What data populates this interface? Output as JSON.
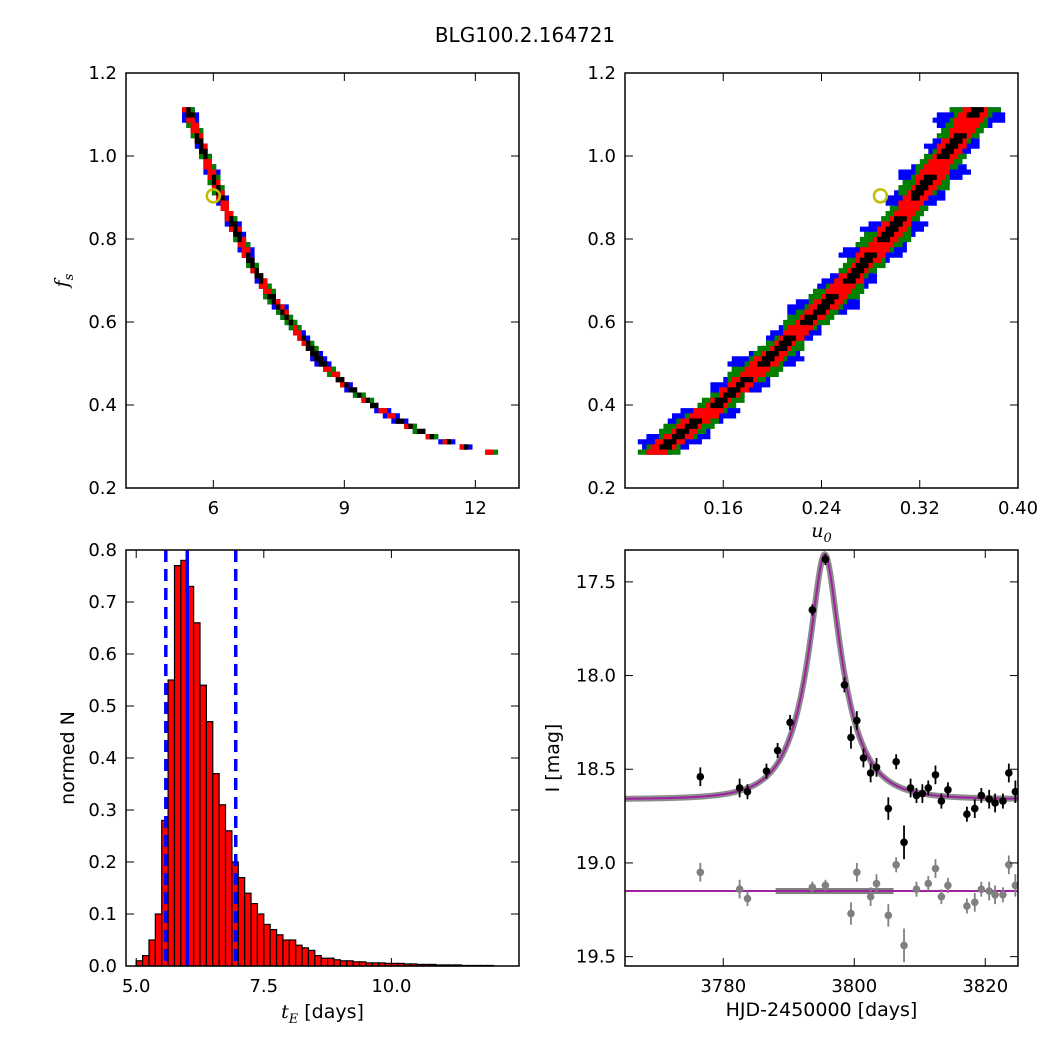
{
  "figure": {
    "title": "BLG100.2.164721"
  },
  "colors": {
    "blue": "#0000ff",
    "green": "#007f00",
    "red": "#ff0000",
    "black": "#000000",
    "marker": "#bfbf00",
    "model": "#a020a0",
    "residual": "#808080"
  },
  "chart_data": [
    {
      "id": "tE_fs",
      "type": "heatmap",
      "xlabel": "",
      "ylabel": "f_s",
      "ylabel_display": {
        "main": "f",
        "sub": "s"
      },
      "xlim": [
        4.0,
        13.0
      ],
      "ylim": [
        0.2,
        1.2
      ],
      "xticks": [
        6,
        9,
        12
      ],
      "xtick_labels": [
        "6",
        "9",
        "12"
      ],
      "yticks": [
        0.2,
        0.4,
        0.6,
        0.8,
        1.0,
        1.2
      ],
      "ytick_labels": [
        "0.2",
        "0.4",
        "0.6",
        "0.8",
        "1.0",
        "1.2"
      ],
      "levels": [
        "black",
        "red",
        "green",
        "blue"
      ],
      "best_fit": {
        "x": 6.0,
        "y": 0.904
      },
      "band_center": [
        [
          5.35,
          1.11
        ],
        [
          5.6,
          1.04
        ],
        [
          5.85,
          0.97
        ],
        [
          6.1,
          0.9
        ],
        [
          6.4,
          0.83
        ],
        [
          6.8,
          0.74
        ],
        [
          7.3,
          0.65
        ],
        [
          7.9,
          0.57
        ],
        [
          8.4,
          0.5
        ],
        [
          9.0,
          0.44
        ],
        [
          9.6,
          0.395
        ],
        [
          10.3,
          0.35
        ],
        [
          11.0,
          0.315
        ],
        [
          11.8,
          0.29
        ],
        [
          12.3,
          0.28
        ]
      ],
      "contour_half_widths": [
        0.018,
        0.045,
        0.07,
        0.09
      ]
    },
    {
      "id": "u0_fs",
      "type": "heatmap",
      "xlabel": "u_0",
      "xlabel_display": {
        "main": "u",
        "sub": "0"
      },
      "ylabel": "",
      "xlim": [
        0.08,
        0.4
      ],
      "ylim": [
        0.2,
        1.2
      ],
      "xticks": [
        0.16,
        0.24,
        0.32,
        0.4
      ],
      "xtick_labels": [
        "0.16",
        "0.24",
        "0.32",
        "0.40"
      ],
      "yticks": [
        0.2,
        0.4,
        0.6,
        0.8,
        1.0,
        1.2
      ],
      "ytick_labels": [
        "0.2",
        "0.4",
        "0.6",
        "0.8",
        "1.0",
        "1.2"
      ],
      "levels": [
        "black",
        "red",
        "green",
        "blue"
      ],
      "best_fit": {
        "x": 0.288,
        "y": 0.904
      },
      "band_center": [
        [
          0.105,
          0.28
        ],
        [
          0.13,
          0.34
        ],
        [
          0.16,
          0.41
        ],
        [
          0.19,
          0.49
        ],
        [
          0.22,
          0.575
        ],
        [
          0.25,
          0.66
        ],
        [
          0.275,
          0.74
        ],
        [
          0.3,
          0.83
        ],
        [
          0.325,
          0.935
        ],
        [
          0.35,
          1.04
        ],
        [
          0.365,
          1.11
        ]
      ],
      "contour_half_widths": [
        0.0035,
        0.009,
        0.014,
        0.018
      ]
    },
    {
      "id": "tE_hist",
      "type": "bar",
      "xlabel": "t_E [days]",
      "xlabel_display": {
        "main": "t",
        "sub": "E",
        "rest": " [days]"
      },
      "ylabel": "normed N",
      "xlim": [
        4.8,
        12.5
      ],
      "ylim": [
        0.0,
        0.8
      ],
      "xticks": [
        5.0,
        7.5,
        10.0
      ],
      "xtick_labels": [
        "5.0",
        "7.5",
        "10.0"
      ],
      "yticks": [
        0.0,
        0.1,
        0.2,
        0.3,
        0.4,
        0.5,
        0.6,
        0.7,
        0.8
      ],
      "ytick_labels": [
        "0.0",
        "0.1",
        "0.2",
        "0.3",
        "0.4",
        "0.5",
        "0.6",
        "0.7",
        "0.8"
      ],
      "bin_start": 5.0,
      "bin_width": 0.125,
      "values": [
        0.01,
        0.02,
        0.05,
        0.1,
        0.28,
        0.55,
        0.77,
        0.78,
        0.73,
        0.66,
        0.54,
        0.47,
        0.37,
        0.31,
        0.26,
        0.2,
        0.17,
        0.14,
        0.12,
        0.1,
        0.08,
        0.07,
        0.06,
        0.05,
        0.05,
        0.04,
        0.035,
        0.03,
        0.02,
        0.015,
        0.015,
        0.012,
        0.01,
        0.01,
        0.008,
        0.008,
        0.006,
        0.006,
        0.006,
        0.005,
        0.005,
        0.005,
        0.004,
        0.004,
        0.003,
        0.003,
        0.003,
        0.002,
        0.002,
        0.002,
        0.002,
        0.001,
        0.001,
        0.001,
        0.001,
        0.001
      ],
      "median": 6.0,
      "interval": [
        5.58,
        6.95
      ]
    },
    {
      "id": "lightcurve",
      "type": "scatter",
      "xlabel": "HJD-2450000 [days]",
      "ylabel": "I [mag]",
      "xlim": [
        3765.0,
        3825.0
      ],
      "ylim": [
        19.55,
        17.33
      ],
      "xticks": [
        3780,
        3800,
        3820
      ],
      "xtick_labels": [
        "3780",
        "3800",
        "3820"
      ],
      "yticks": [
        17.5,
        18.0,
        18.5,
        19.0,
        19.5
      ],
      "ytick_labels": [
        "17.5",
        "18.0",
        "18.5",
        "19.0",
        "19.5"
      ],
      "model": {
        "t0": 3795.5,
        "tE": 6.0,
        "u0": 0.288,
        "fs": 0.904,
        "baseline": 18.66
      },
      "residual_offset": 19.15,
      "series": [
        {
          "values": [
            [
              3776.5,
              18.54,
              0.05
            ],
            [
              3782.5,
              18.6,
              0.05
            ],
            [
              3783.7,
              18.62,
              0.04
            ],
            [
              3786.6,
              18.51,
              0.04
            ],
            [
              3788.3,
              18.4,
              0.04
            ],
            [
              3790.2,
              18.25,
              0.04
            ],
            [
              3793.6,
              17.65,
              0.03
            ],
            [
              3795.6,
              17.38,
              0.03
            ],
            [
              3798.5,
              18.05,
              0.04
            ],
            [
              3799.5,
              18.33,
              0.06
            ],
            [
              3800.4,
              18.24,
              0.05
            ],
            [
              3801.4,
              18.44,
              0.05
            ],
            [
              3802.5,
              18.52,
              0.05
            ],
            [
              3803.4,
              18.49,
              0.05
            ],
            [
              3805.2,
              18.71,
              0.06
            ],
            [
              3806.4,
              18.46,
              0.04
            ],
            [
              3807.6,
              18.89,
              0.09
            ],
            [
              3808.6,
              18.6,
              0.05
            ],
            [
              3809.5,
              18.64,
              0.04
            ],
            [
              3810.4,
              18.63,
              0.05
            ],
            [
              3811.3,
              18.6,
              0.04
            ],
            [
              3812.4,
              18.53,
              0.05
            ],
            [
              3813.3,
              18.67,
              0.04
            ],
            [
              3814.3,
              18.61,
              0.04
            ],
            [
              3817.2,
              18.74,
              0.04
            ],
            [
              3818.4,
              18.71,
              0.05
            ],
            [
              3819.4,
              18.64,
              0.04
            ],
            [
              3820.6,
              18.66,
              0.05
            ],
            [
              3821.5,
              18.68,
              0.05
            ],
            [
              3822.7,
              18.67,
              0.04
            ],
            [
              3823.6,
              18.52,
              0.05
            ],
            [
              3824.6,
              18.62,
              0.06
            ]
          ]
        },
        {
          "values": [
            [
              3776.5,
              19.05,
              0.05
            ],
            [
              3782.5,
              19.14,
              0.05
            ],
            [
              3783.7,
              19.19,
              0.04
            ],
            [
              3793.6,
              19.13,
              0.03
            ],
            [
              3795.6,
              19.12,
              0.03
            ],
            [
              3799.5,
              19.27,
              0.06
            ],
            [
              3800.4,
              19.05,
              0.05
            ],
            [
              3802.5,
              19.18,
              0.05
            ],
            [
              3803.4,
              19.11,
              0.05
            ],
            [
              3805.2,
              19.28,
              0.06
            ],
            [
              3806.4,
              19.01,
              0.04
            ],
            [
              3807.6,
              19.44,
              0.09
            ],
            [
              3809.5,
              19.14,
              0.04
            ],
            [
              3811.3,
              19.11,
              0.04
            ],
            [
              3812.4,
              19.03,
              0.05
            ],
            [
              3813.3,
              19.18,
              0.04
            ],
            [
              3814.3,
              19.12,
              0.04
            ],
            [
              3817.2,
              19.23,
              0.04
            ],
            [
              3818.4,
              19.21,
              0.05
            ],
            [
              3819.4,
              19.14,
              0.04
            ],
            [
              3820.6,
              19.15,
              0.05
            ],
            [
              3821.5,
              19.17,
              0.05
            ],
            [
              3822.7,
              19.17,
              0.04
            ],
            [
              3823.6,
              19.01,
              0.05
            ],
            [
              3824.6,
              19.12,
              0.06
            ]
          ]
        }
      ]
    }
  ]
}
